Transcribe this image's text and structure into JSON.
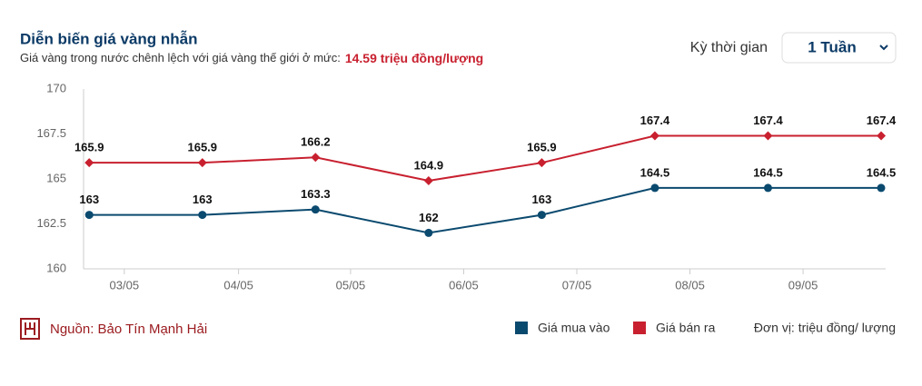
{
  "header": {
    "title": "Diễn biến giá vàng nhẫn",
    "subtitle": "Giá vàng trong nước chênh lệch với giá vàng thế giới ở mức:",
    "highlight": "14.59 triệu đồng/lượng"
  },
  "controls": {
    "label": "Kỳ thời gian",
    "selected": "1 Tuần"
  },
  "chart_data": {
    "type": "line",
    "x": [
      0,
      1,
      2,
      3,
      4,
      5,
      6,
      7
    ],
    "xlim": [
      -0.05,
      7.04
    ],
    "xticks": [
      {
        "value": 0.31,
        "label": "03/05"
      },
      {
        "value": 1.32,
        "label": "04/05"
      },
      {
        "value": 2.31,
        "label": "05/05"
      },
      {
        "value": 3.31,
        "label": "06/05"
      },
      {
        "value": 4.31,
        "label": "07/05"
      },
      {
        "value": 5.31,
        "label": "08/05"
      },
      {
        "value": 6.31,
        "label": "09/05"
      }
    ],
    "ylim": [
      160,
      170
    ],
    "yticks": [
      160,
      162.5,
      165,
      167.5,
      170
    ],
    "grid": false,
    "series": [
      {
        "name": "Giá mua vào",
        "color": "#0b4a6f",
        "values": [
          163,
          163,
          163.3,
          162,
          163,
          164.5,
          164.5,
          164.5
        ]
      },
      {
        "name": "Giá bán ra",
        "color": "#c8202f",
        "values": [
          165.9,
          165.9,
          166.2,
          164.9,
          165.9,
          167.4,
          167.4,
          167.4
        ]
      }
    ]
  },
  "footer": {
    "source": "Nguồn: Bảo Tín Mạnh Hải",
    "unit": "Đơn vị: triệu đồng/ lượng"
  }
}
